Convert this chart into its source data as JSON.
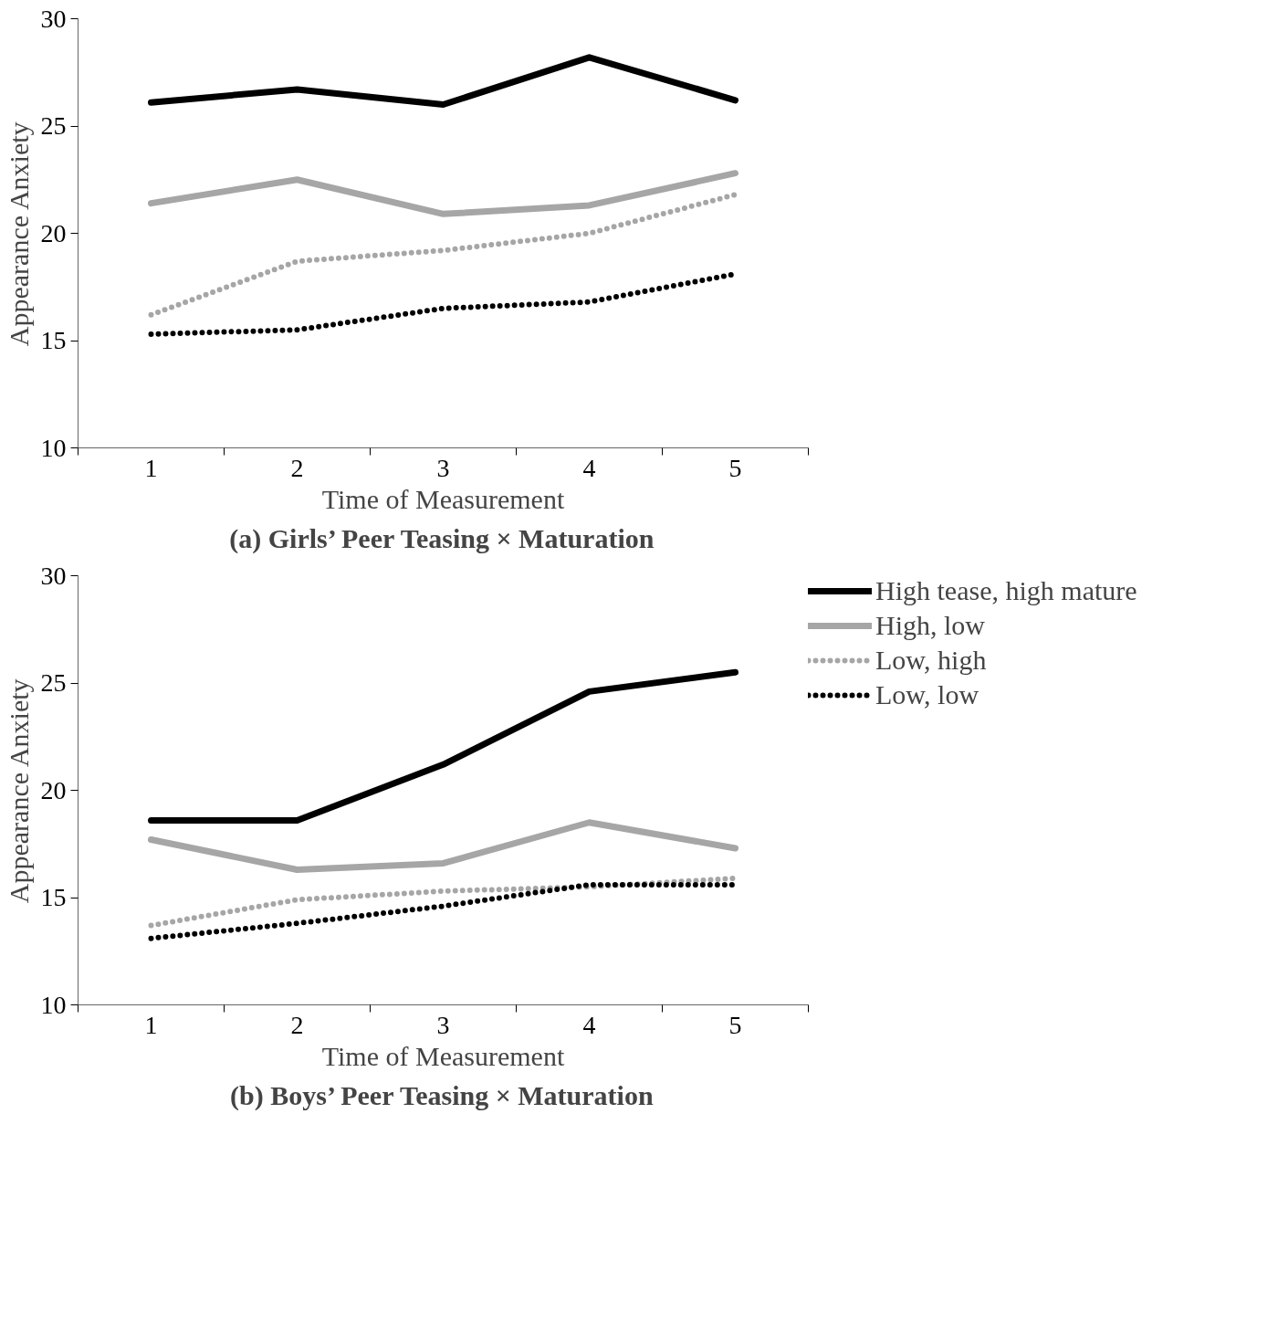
{
  "chart_data": [
    {
      "type": "line",
      "title": "(a) Girls’ Peer Teasing × Maturation",
      "xlabel": "Time of Measurement",
      "ylabel": "Appearance Anxiety",
      "categories": [
        "1",
        "2",
        "3",
        "4",
        "5"
      ],
      "ylim": [
        10,
        30
      ],
      "yticks": [
        10,
        15,
        20,
        25,
        30
      ],
      "grid": false,
      "legend": false,
      "series": [
        {
          "color": "#000000",
          "line_style": "solid",
          "values": [
            26.1,
            26.7,
            26.0,
            28.2,
            26.2
          ]
        },
        {
          "color": "#a6a6a6",
          "line_style": "solid",
          "values": [
            21.4,
            22.5,
            20.9,
            21.3,
            22.8
          ]
        },
        {
          "color": "#a6a6a6",
          "line_style": "dotted",
          "values": [
            16.2,
            18.7,
            19.2,
            20.0,
            21.8
          ]
        },
        {
          "color": "#000000",
          "line_style": "dotted",
          "values": [
            15.3,
            15.5,
            16.5,
            16.8,
            18.1
          ]
        }
      ]
    },
    {
      "type": "line",
      "title": "(b) Boys’ Peer Teasing × Maturation",
      "xlabel": "Time of Measurement",
      "ylabel": "Appearance Anxiety",
      "categories": [
        "1",
        "2",
        "3",
        "4",
        "5"
      ],
      "ylim": [
        10,
        30
      ],
      "yticks": [
        10,
        15,
        20,
        25,
        30
      ],
      "grid": false,
      "legend": "top right",
      "series": [
        {
          "name": "High tease, high mature",
          "color": "#000000",
          "line_style": "solid",
          "values": [
            18.6,
            18.6,
            21.2,
            24.6,
            25.5
          ]
        },
        {
          "name": "High, low",
          "color": "#a6a6a6",
          "line_style": "solid",
          "values": [
            17.7,
            16.3,
            16.6,
            18.5,
            17.3
          ]
        },
        {
          "name": "Low, high",
          "color": "#a6a6a6",
          "line_style": "dotted",
          "values": [
            13.7,
            14.9,
            15.3,
            15.5,
            15.9
          ]
        },
        {
          "name": "Low, low",
          "color": "#000000",
          "line_style": "dotted",
          "values": [
            13.1,
            13.8,
            14.6,
            15.6,
            15.6
          ]
        }
      ]
    }
  ]
}
